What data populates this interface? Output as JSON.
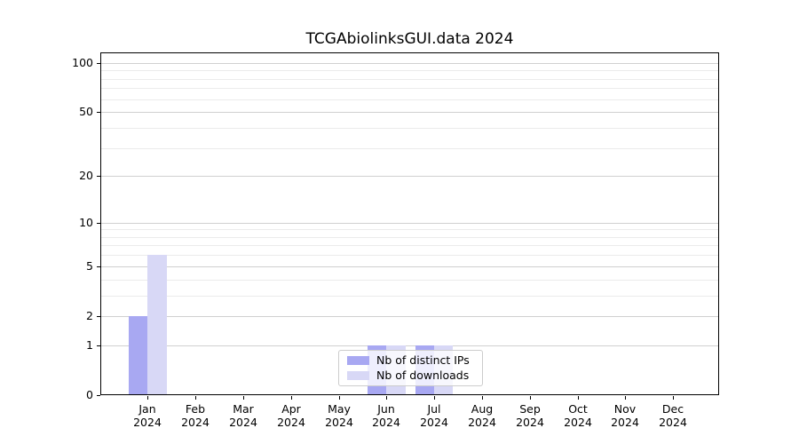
{
  "chart_data": {
    "type": "bar",
    "title": "TCGAbiolinksGUI.data 2024",
    "categories": [
      "Jan",
      "Feb",
      "Mar",
      "Apr",
      "May",
      "Jun",
      "Jul",
      "Aug",
      "Sep",
      "Oct",
      "Nov",
      "Dec"
    ],
    "x_year_label": "2024",
    "series": [
      {
        "name": "Nb of distinct IPs",
        "color": "#a8a8f2",
        "values": [
          2,
          0,
          0,
          0,
          0,
          1,
          1,
          0,
          0,
          0,
          0,
          0
        ]
      },
      {
        "name": "Nb of downloads",
        "color": "#d8d8f6",
        "values": [
          6,
          0,
          0,
          0,
          0,
          1,
          1,
          0,
          0,
          0,
          0,
          0
        ]
      }
    ],
    "yscale": "log10(1+v)",
    "y_ticks": [
      0,
      1,
      2,
      5,
      10,
      20,
      50,
      100
    ],
    "y_minor_gridlines": [
      3,
      4,
      6,
      7,
      8,
      9,
      30,
      40,
      60,
      70,
      80,
      90
    ],
    "ylim": [
      0,
      116
    ],
    "grid": true,
    "legend_position": "lower center inside",
    "colors": {
      "major_grid": "#d0d0d0",
      "minor_grid": "#ebebeb",
      "spine": "#000000",
      "legend_border": "#cccccc"
    }
  }
}
